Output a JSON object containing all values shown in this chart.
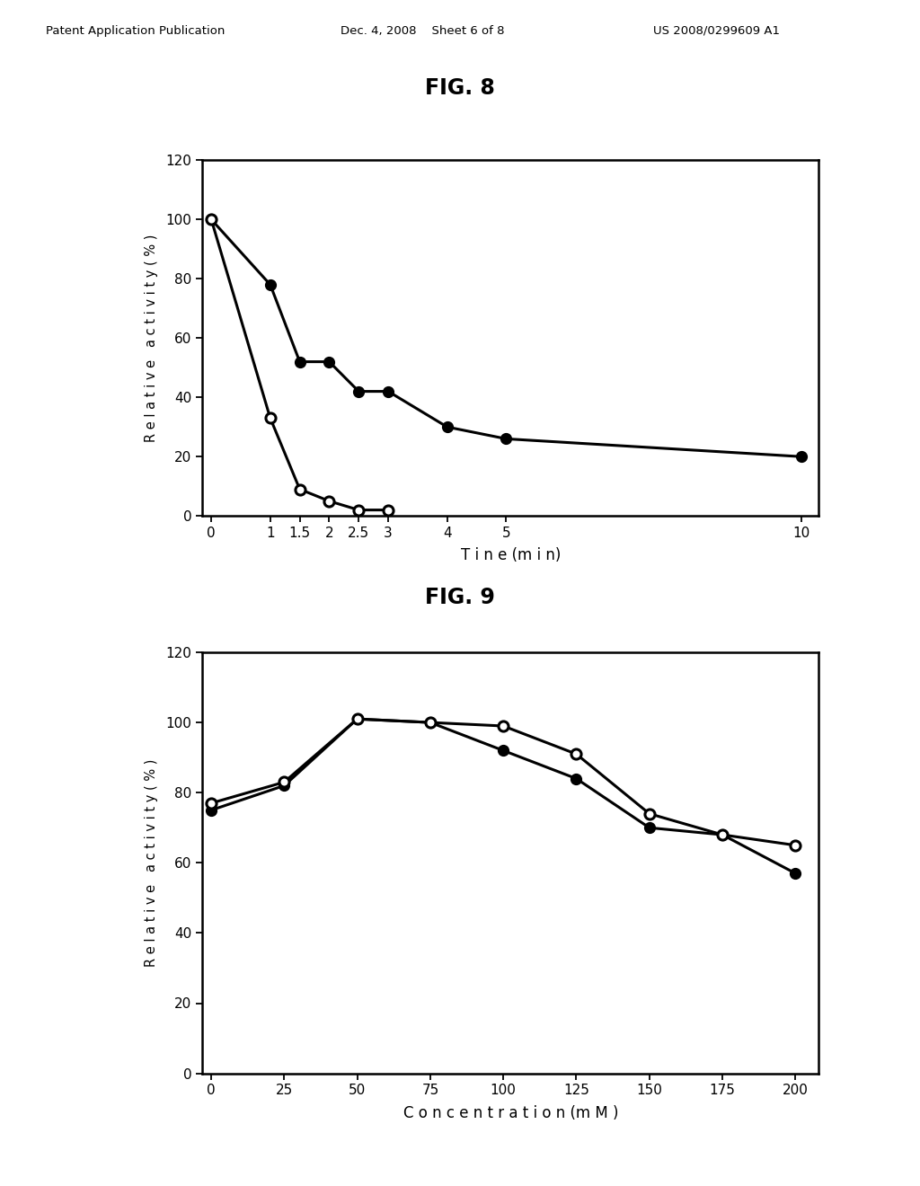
{
  "fig8": {
    "title": "FIG. 8",
    "xlabel": "T i n e (m i n)",
    "ylabel": "R e l a t i v e   a c t i v i t y ( % )",
    "ylim": [
      0,
      120
    ],
    "yticks": [
      0,
      20,
      40,
      60,
      80,
      100,
      120
    ],
    "xticks": [
      0,
      1,
      1.5,
      2,
      2.5,
      3,
      4,
      5,
      10
    ],
    "xticklabels": [
      "0",
      "1",
      "1.5",
      "2",
      "2.5",
      "3",
      "4",
      "5",
      "10"
    ],
    "xlim": [
      -0.15,
      10.3
    ],
    "series_filled": {
      "x": [
        0,
        1,
        1.5,
        2,
        2.5,
        3,
        4,
        5,
        10
      ],
      "y": [
        100,
        78,
        52,
        52,
        42,
        42,
        30,
        26,
        20
      ]
    },
    "series_open": {
      "x": [
        0,
        1,
        1.5,
        2,
        2.5,
        3
      ],
      "y": [
        100,
        33,
        9,
        5,
        2,
        2
      ]
    }
  },
  "fig9": {
    "title": "FIG. 9",
    "xlabel": "C o n c e n t r a t i o n (m M )",
    "ylabel": "R e l a t i v e   a c t i v i t y ( % )",
    "ylim": [
      0,
      120
    ],
    "yticks": [
      0,
      20,
      40,
      60,
      80,
      100,
      120
    ],
    "xticks": [
      0,
      25,
      50,
      75,
      100,
      125,
      150,
      175,
      200
    ],
    "xticklabels": [
      "0",
      "25",
      "50",
      "75",
      "100",
      "125",
      "150",
      "175",
      "200"
    ],
    "xlim": [
      -3,
      208
    ],
    "series_filled": {
      "x": [
        0,
        25,
        50,
        75,
        100,
        125,
        150,
        175,
        200
      ],
      "y": [
        75,
        82,
        101,
        100,
        92,
        84,
        70,
        68,
        57
      ]
    },
    "series_open": {
      "x": [
        0,
        25,
        50,
        75,
        100,
        125,
        150,
        175,
        200
      ],
      "y": [
        77,
        83,
        101,
        100,
        99,
        91,
        74,
        68,
        65
      ]
    }
  },
  "header": {
    "left": "Patent Application Publication",
    "center": "Dec. 4, 2008    Sheet 6 of 8",
    "right": "US 2008/0299609 A1"
  },
  "background_color": "#ffffff",
  "line_color": "#000000",
  "marker_size": 8,
  "line_width": 2.2
}
